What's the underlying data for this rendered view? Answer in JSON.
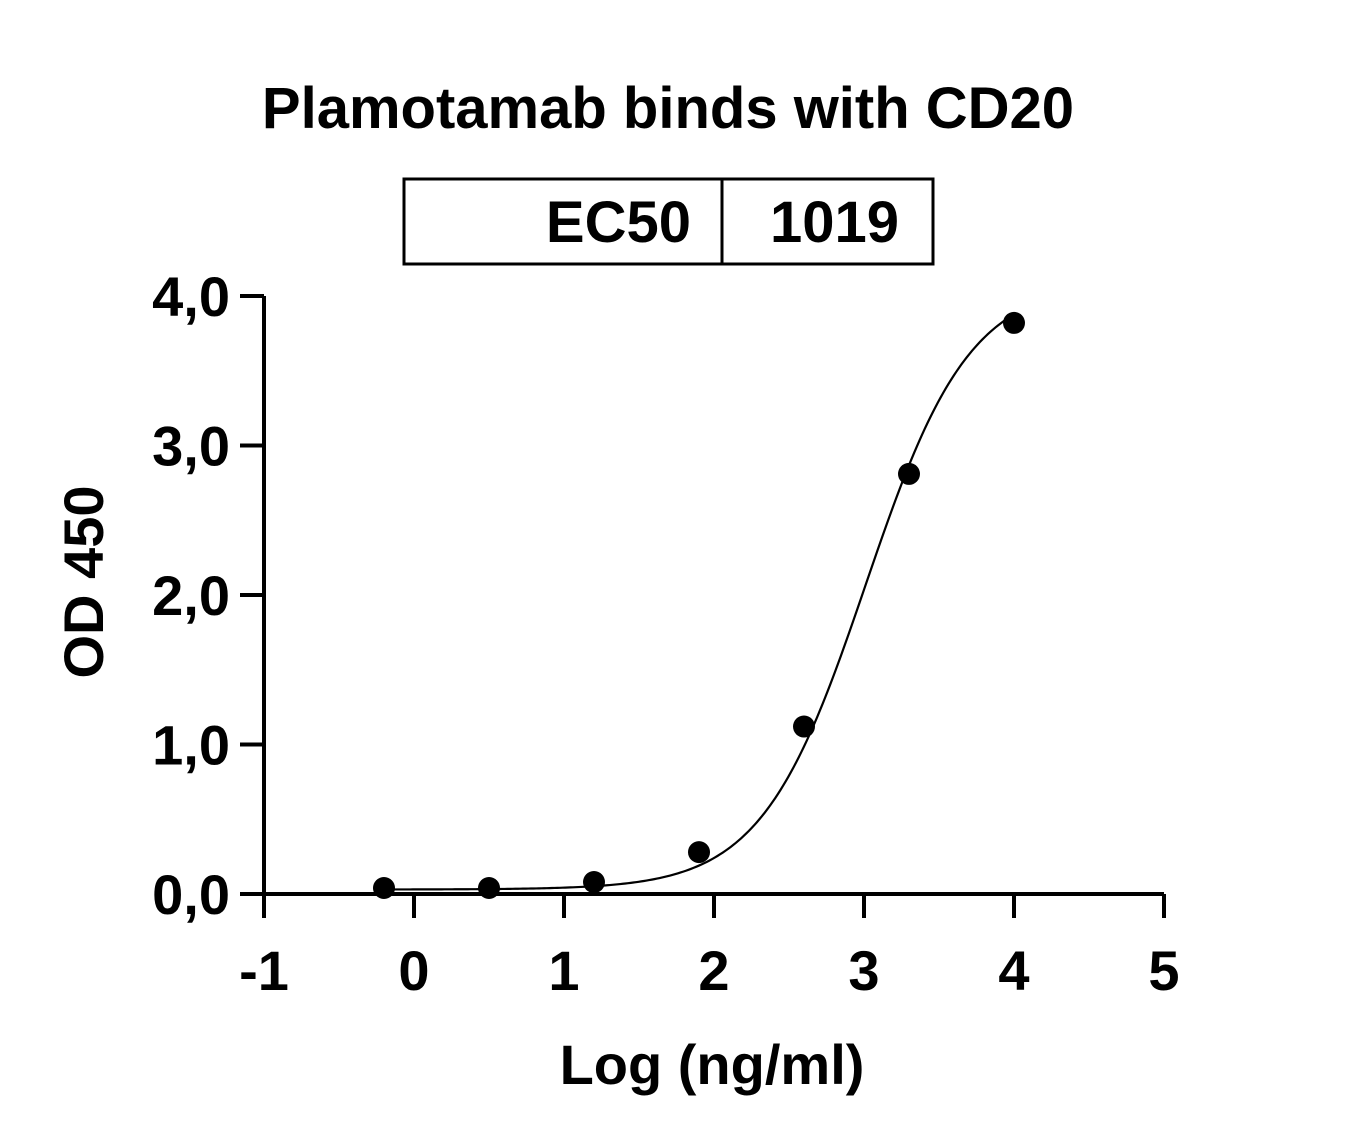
{
  "chart_data": {
    "type": "scatter",
    "title": "Plamotamab binds with CD20",
    "xlabel": "Log (ng/ml)",
    "ylabel": "OD 450",
    "xlim": [
      -1,
      5
    ],
    "ylim": [
      0,
      4
    ],
    "x_ticks": [
      "-1",
      "0",
      "1",
      "2",
      "3",
      "4",
      "5"
    ],
    "y_ticks": [
      "0,0",
      "1,0",
      "2,0",
      "3,0",
      "4,0"
    ],
    "ec50_table": {
      "label": "EC50",
      "value": "1019"
    },
    "series": [
      {
        "points": [
          {
            "x": -0.2,
            "y": 0.04
          },
          {
            "x": 0.5,
            "y": 0.04
          },
          {
            "x": 1.2,
            "y": 0.08
          },
          {
            "x": 1.9,
            "y": 0.28
          },
          {
            "x": 2.6,
            "y": 1.12
          },
          {
            "x": 3.3,
            "y": 2.81
          },
          {
            "x": 4.0,
            "y": 3.82
          }
        ],
        "fit": {
          "model": "four-parameter logistic",
          "bottom": 0.03,
          "top": 4.1,
          "log_ec50": 3.01,
          "hill_slope": 1.25
        }
      }
    ],
    "grid": false,
    "legend": "none",
    "colors": {
      "points": "#000000",
      "line": "#000000",
      "axes": "#000000"
    }
  }
}
